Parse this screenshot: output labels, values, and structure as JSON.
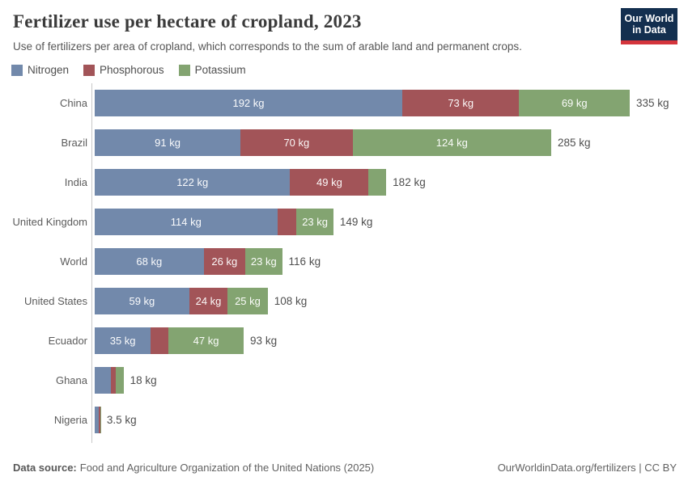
{
  "header": {
    "title": "Fertilizer use per hectare of cropland, 2023",
    "subtitle": "Use of fertilizers per area of cropland, which corresponds to the sum of arable land and permanent crops.",
    "logo": {
      "line1": "Our World",
      "line2": "in Data"
    }
  },
  "colors": {
    "nitrogen": "#7289ab",
    "phosphorous": "#a25458",
    "potassium": "#83a471",
    "axis": "#c9c9c9",
    "logo_navy": "#132f4f",
    "logo_red": "#d4353c"
  },
  "chart_data": {
    "type": "bar",
    "stacked": true,
    "orientation": "horizontal",
    "unit": "kg",
    "xmax": 335,
    "grid": false,
    "legend_position": "top",
    "categories": [
      "China",
      "Brazil",
      "India",
      "United Kingdom",
      "World",
      "United States",
      "Ecuador",
      "Ghana",
      "Nigeria"
    ],
    "series": [
      {
        "name": "Nitrogen",
        "color": "#7289ab",
        "values": [
          192,
          91,
          122,
          114,
          68,
          59,
          35,
          10,
          2.5
        ],
        "labels": [
          "192 kg",
          "91 kg",
          "122 kg",
          "114 kg",
          "68 kg",
          "59 kg",
          "35 kg",
          "",
          ""
        ]
      },
      {
        "name": "Phosphorous",
        "color": "#a25458",
        "values": [
          73,
          70,
          49,
          12,
          26,
          24,
          11,
          3,
          0.8
        ],
        "labels": [
          "73 kg",
          "70 kg",
          "49 kg",
          "",
          "26 kg",
          "24 kg",
          "",
          "",
          ""
        ]
      },
      {
        "name": "Potassium",
        "color": "#83a471",
        "values": [
          69,
          124,
          11,
          23,
          23,
          25,
          47,
          5,
          0.2
        ],
        "labels": [
          "69 kg",
          "124 kg",
          "",
          "23 kg",
          "23 kg",
          "25 kg",
          "47 kg",
          "",
          ""
        ]
      }
    ],
    "totals": [
      "335 kg",
      "285 kg",
      "182 kg",
      "149 kg",
      "116 kg",
      "108 kg",
      "93 kg",
      "18 kg",
      "3.5 kg"
    ]
  },
  "footer": {
    "source_label": "Data source:",
    "source_text": "Food and Agriculture Organization of the United Nations (2025)",
    "credit": "OurWorldinData.org/fertilizers | CC BY"
  }
}
